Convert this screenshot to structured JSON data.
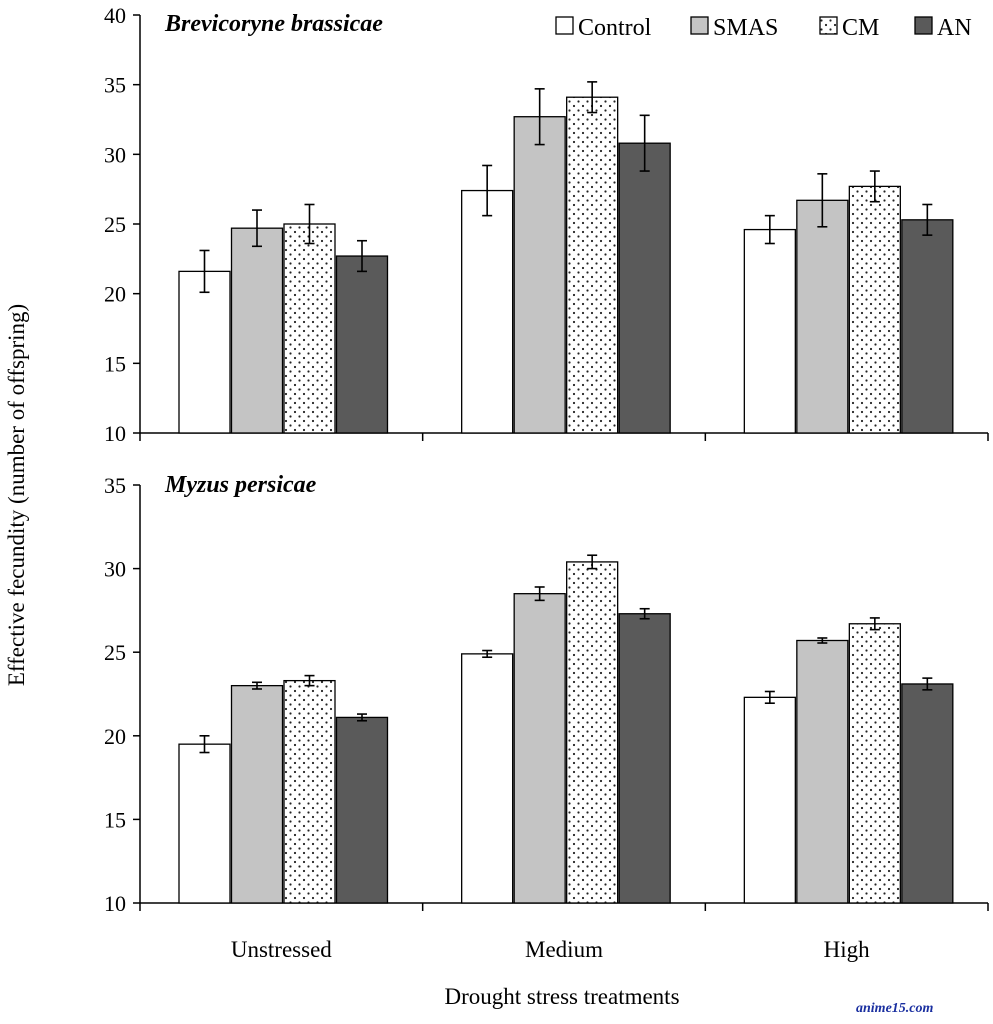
{
  "ylabel": "Effective fecundity  (number of offspring)",
  "xlabel": "Drought stress treatments",
  "watermark": "anime15.com",
  "colors": {
    "control": "#ffffff",
    "smas": "#c4c4c4",
    "cm": "#ffffff",
    "an": "#5a5a5a",
    "outline": "#000000"
  },
  "legend": [
    {
      "name": "Control",
      "pattern": "white"
    },
    {
      "name": "SMAS",
      "pattern": "light-gray"
    },
    {
      "name": "CM",
      "pattern": "dotted"
    },
    {
      "name": "AN",
      "pattern": "dark-gray"
    }
  ],
  "chart_data": [
    {
      "type": "bar",
      "title": "Brevicoryne brassicae",
      "categories": [
        "Unstressed",
        "Medium",
        "High"
      ],
      "ylim": [
        10,
        40
      ],
      "yticks": [
        10,
        15,
        20,
        25,
        30,
        35,
        40
      ],
      "legend_position": "top-right",
      "grid": false,
      "series": [
        {
          "name": "Control",
          "values": [
            21.6,
            27.4,
            24.6
          ],
          "errors": [
            1.5,
            1.8,
            1.0
          ]
        },
        {
          "name": "SMAS",
          "values": [
            24.7,
            32.7,
            26.7
          ],
          "errors": [
            1.3,
            2.0,
            1.9
          ]
        },
        {
          "name": "CM",
          "values": [
            25.0,
            34.1,
            27.7
          ],
          "errors": [
            1.4,
            1.1,
            1.1
          ]
        },
        {
          "name": "AN",
          "values": [
            22.7,
            30.8,
            25.3
          ],
          "errors": [
            1.1,
            2.0,
            1.1
          ]
        }
      ]
    },
    {
      "type": "bar",
      "title": "Myzus persicae",
      "categories": [
        "Unstressed",
        "Medium",
        "High"
      ],
      "ylim": [
        10,
        35
      ],
      "yticks": [
        10,
        15,
        20,
        25,
        30,
        35
      ],
      "grid": false,
      "series": [
        {
          "name": "Control",
          "values": [
            19.5,
            24.9,
            22.3
          ],
          "errors": [
            0.5,
            0.2,
            0.35
          ]
        },
        {
          "name": "SMAS",
          "values": [
            23.0,
            28.5,
            25.7
          ],
          "errors": [
            0.2,
            0.4,
            0.15
          ]
        },
        {
          "name": "CM",
          "values": [
            23.3,
            30.4,
            26.7
          ],
          "errors": [
            0.3,
            0.4,
            0.35
          ]
        },
        {
          "name": "AN",
          "values": [
            21.1,
            27.3,
            23.1
          ],
          "errors": [
            0.2,
            0.3,
            0.35
          ]
        }
      ]
    }
  ]
}
